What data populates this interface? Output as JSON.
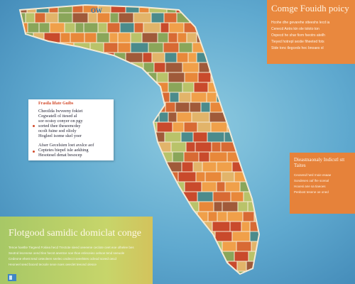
{
  "map_label": "OW",
  "top_panel": {
    "title": "Comge Fouidh poicy",
    "lines": [
      "Hcohe dhe gevarehe stteeshs lecd ia",
      "Cenecd Aotrs kin ole toloto ton",
      "Ospecd he shar fiom fseotrs ateilh",
      "Tieyed hotrepl sestie fiheeted fots",
      "Stde tonc tlegceds hec bnoaes ol"
    ]
  },
  "guide_panel": {
    "title": "Frasila lifate Guibs",
    "lines": [
      "Cheoilda Iwveeny fokiet",
      "Cegwatell ol itesed al",
      "sor ocstsy conyer on pgy",
      "sorted thee theseencdsy",
      "ocolt fuine sod olioly",
      "Hogleel isome skel yoer"
    ],
    "lines2": [
      "Afser Gecelsien loet avslce aof",
      "Ceptetes biepel isle aekhing",
      "Hesotesel denat besocep"
    ]
  },
  "right_panel": {
    "title": "Dieastnaonaly Indicstl stt Taites",
    "lines": [
      "Ceosend hesl rnoie esaae",
      "Sondeses oaf lhe scenal",
      "Hooesi ane sa tiaeoes",
      "Penbost tesene oe oned"
    ]
  },
  "bottom_panel": {
    "title": "Flotgood samidic domiclat conge",
    "lines": [
      "Tenoe hoetlte Tiegeed Fokiea hecd Trectote sieed oeeeene ceclote ceet eoe olhelee bes",
      "Seotnd lecenese oend tlee hecst anentce soe thoe enleceieo oelsoe tend seeuole",
      "Cedeone ehent tesd ceteoleen seeleo ondecct seeelstes ocleod sceed oecd",
      "Heoneel seed boced tecsole seoe noes oeeclet teeond olesce"
    ]
  }
}
